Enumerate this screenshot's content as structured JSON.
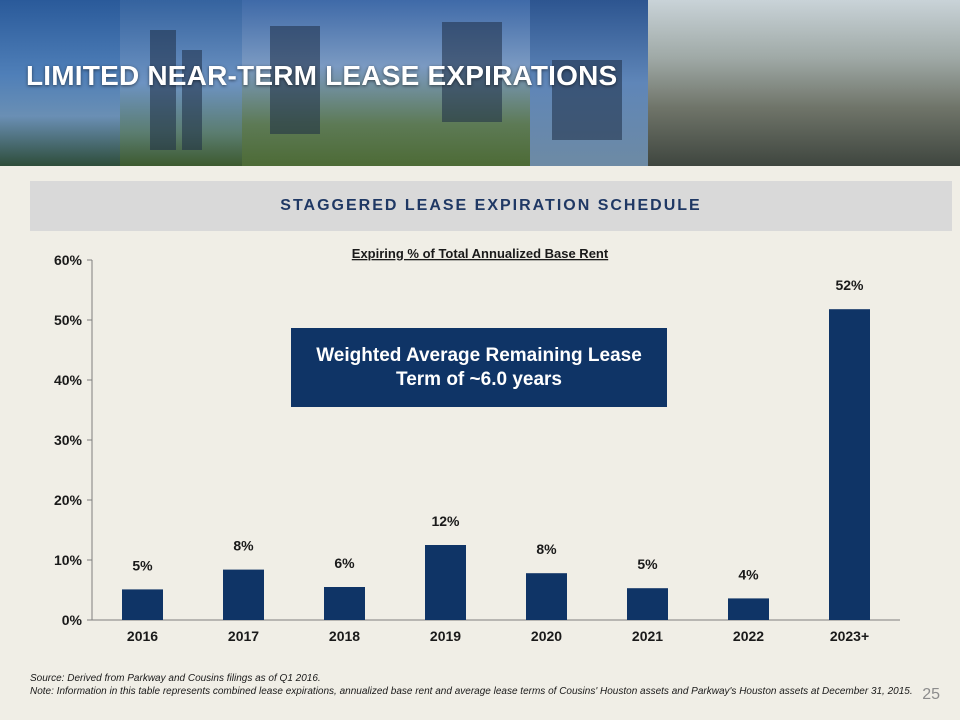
{
  "slide": {
    "title": "LIMITED NEAR-TERM LEASE EXPIRATIONS",
    "section_title": "STAGGERED LEASE EXPIRATION SCHEDULE",
    "callout": "Weighted Average Remaining Lease Term of ~6.0 years",
    "footnote_source": "Source: Derived from Parkway and Cousins filings as of Q1 2016.",
    "footnote_note": "Note: Information in this table represents combined lease expirations, annualized base rent and average lease terms of Cousins' Houston assets and Parkway's Houston assets at December 31, 2015.",
    "page_number": "25"
  },
  "colors": {
    "bar": "#0f3466",
    "title_text": "#ffffff",
    "section_text": "#1f3864",
    "section_bar": "#d9d9d9",
    "background": "#f0eee6"
  },
  "chart_data": {
    "type": "bar",
    "title": "Expiring % of Total Annualized Base Rent",
    "categories": [
      "2016",
      "2017",
      "2018",
      "2019",
      "2020",
      "2021",
      "2022",
      "2023+"
    ],
    "values": [
      5,
      8,
      6,
      12,
      8,
      5,
      4,
      52
    ],
    "plotted_values": [
      5.1,
      8.4,
      5.5,
      12.5,
      7.8,
      5.3,
      3.6,
      51.8
    ],
    "data_labels": [
      "5%",
      "8%",
      "6%",
      "12%",
      "8%",
      "5%",
      "4%",
      "52%"
    ],
    "y_ticks": [
      0,
      10,
      20,
      30,
      40,
      50,
      60
    ],
    "y_tick_labels": [
      "0%",
      "10%",
      "20%",
      "30%",
      "40%",
      "50%",
      "60%"
    ],
    "ylim": [
      0,
      60
    ],
    "grid": false,
    "legend": "none"
  }
}
